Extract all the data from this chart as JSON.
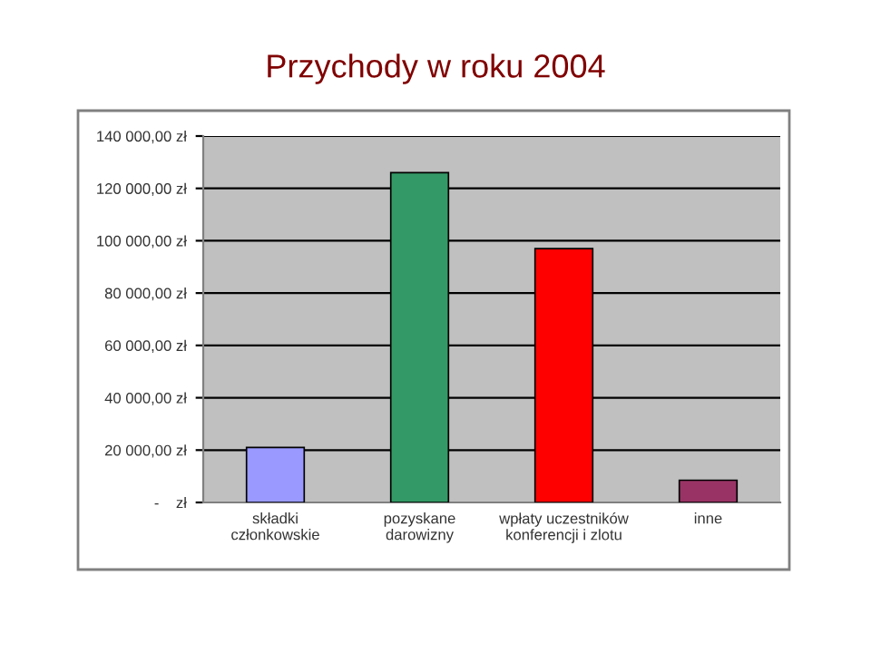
{
  "chart_data": {
    "type": "bar",
    "title": "Przychody w roku 2004",
    "categories": [
      "składki\nczłonkowskie",
      "pozyskane\ndarowizny",
      "wpłaty uczestników\nkonferencji i zlotu",
      "inne"
    ],
    "values": [
      21000,
      126000,
      97000,
      8500
    ],
    "colors": [
      "#9999ff",
      "#339966",
      "#ff0000",
      "#993366"
    ],
    "ylim": [
      0,
      140000
    ],
    "yticks": [
      {
        "value": 0,
        "label": "-    zł"
      },
      {
        "value": 20000,
        "label": "20 000,00 zł"
      },
      {
        "value": 40000,
        "label": "40 000,00 zł"
      },
      {
        "value": 60000,
        "label": "60 000,00 zł"
      },
      {
        "value": 80000,
        "label": "80 000,00 zł"
      },
      {
        "value": 100000,
        "label": "100 000,00 zł"
      },
      {
        "value": 120000,
        "label": "120 000,00 zł"
      },
      {
        "value": 140000,
        "label": "140 000,00 zł"
      }
    ],
    "grid": "y"
  }
}
